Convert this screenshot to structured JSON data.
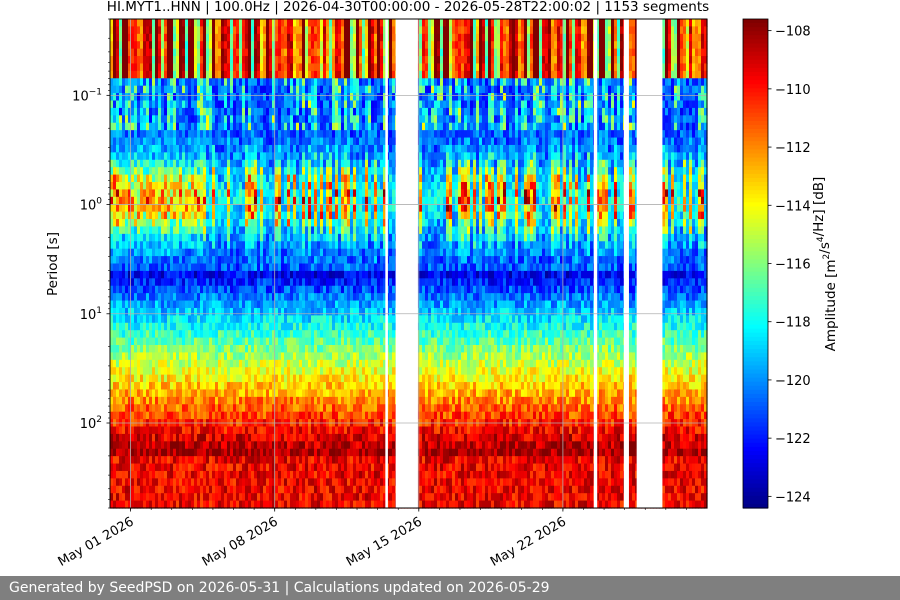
{
  "chart_data": {
    "type": "heatmap",
    "title": "HI.MYT1..HNN | 100.0Hz | 2026-04-30T00:00:00 - 2026-05-28T22:00:02 | 1153 segments",
    "ylabel": "Period [s]",
    "y_scale": "log",
    "y_inverted": true,
    "ylim": [
      0.02,
      600
    ],
    "y_ticks": [
      {
        "value": 0.1,
        "base": "10",
        "exp": "−1"
      },
      {
        "value": 1,
        "base": "10",
        "exp": "0"
      },
      {
        "value": 10,
        "base": "10",
        "exp": "1"
      },
      {
        "value": 100,
        "base": "10",
        "exp": "2"
      }
    ],
    "xlim": [
      "2026-04-30",
      "2026-05-29"
    ],
    "x_ticks": [
      {
        "date": "2026-05-01",
        "label": "May 01 2026"
      },
      {
        "date": "2026-05-08",
        "label": "May 08 2026"
      },
      {
        "date": "2026-05-15",
        "label": "May 15 2026"
      },
      {
        "date": "2026-05-22",
        "label": "May 22 2026"
      }
    ],
    "grid": true,
    "data_gaps": [
      {
        "start": "2026-05-13 09:00",
        "end": "2026-05-13 12:00"
      },
      {
        "start": "2026-05-13 21:00",
        "end": "2026-05-14 23:00"
      },
      {
        "start": "2026-05-23 12:00",
        "end": "2026-05-23 16:00"
      },
      {
        "start": "2026-05-24 23:00",
        "end": "2026-05-25 05:00"
      },
      {
        "start": "2026-05-25 14:00",
        "end": "2026-05-26 20:00"
      }
    ],
    "colorbar": {
      "label": "Amplitude [m²/s⁴/Hz] [dB]",
      "colormap": "jet",
      "range": [
        -124.4,
        -107.6
      ],
      "ticks": [
        -108,
        -110,
        -112,
        -114,
        -116,
        -118,
        -120,
        -122,
        -124
      ]
    }
  },
  "footer": {
    "text": "Generated by SeedPSD on 2026-05-31 | Calculations updated on 2026-05-29"
  }
}
